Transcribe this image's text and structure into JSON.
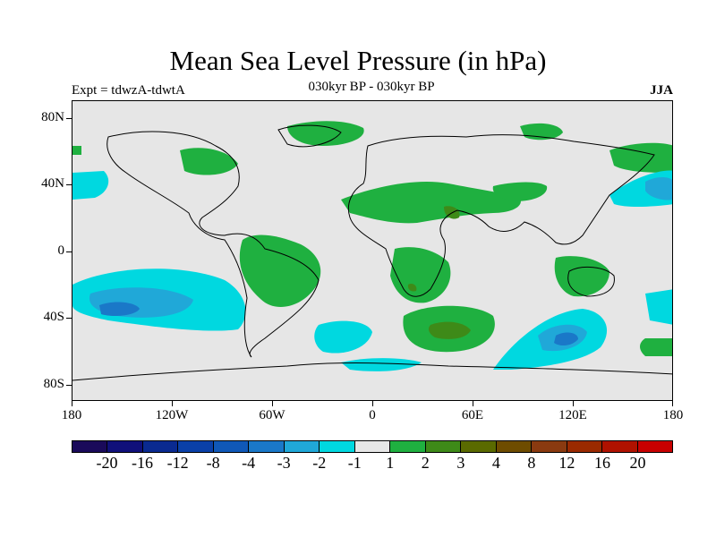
{
  "title": "Mean Sea Level Pressure (in hPa)",
  "experiment_label": "Expt = tdwzA-tdwtA",
  "period_label": "030kyr BP - 030kyr BP",
  "season_label": "JJA",
  "map": {
    "y_axis_labels": [
      "80N",
      "40N",
      "0",
      "40S",
      "80S"
    ],
    "x_axis_labels": [
      "180",
      "120W",
      "60W",
      "0",
      "60E",
      "120E",
      "180"
    ]
  },
  "colorbar": {
    "colors": [
      "#1a0a5a",
      "#10107a",
      "#0a2a90",
      "#0a40a8",
      "#1058b8",
      "#1a78c8",
      "#20a8d8",
      "#00d8e0",
      "#e6e6e6",
      "#1fb040",
      "#3e8a18",
      "#5a6a00",
      "#6e4c00",
      "#8a3a10",
      "#9a2a00",
      "#b01200",
      "#c80000"
    ],
    "labels": [
      "-20",
      "-16",
      "-12",
      "-8",
      "-4",
      "-3",
      "-2",
      "-1",
      "1",
      "2",
      "3",
      "4",
      "8",
      "12",
      "16",
      "20"
    ]
  }
}
